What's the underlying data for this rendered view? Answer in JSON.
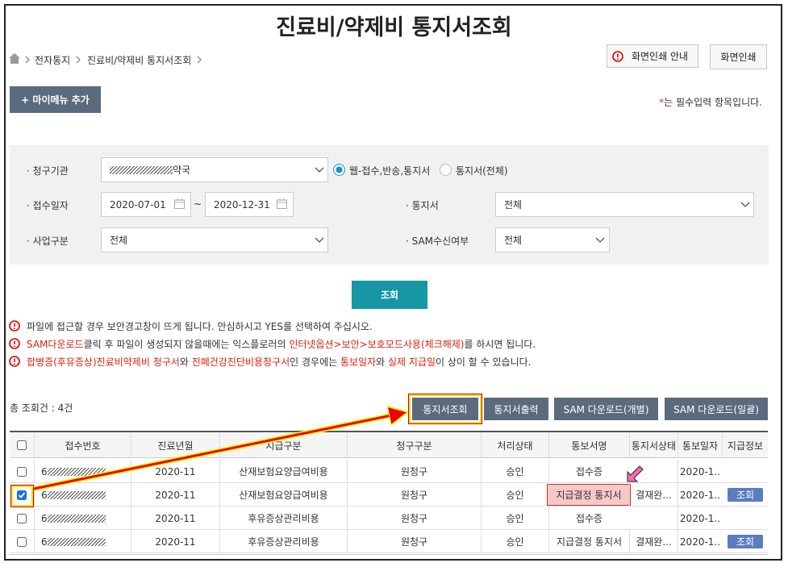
{
  "header": {
    "title": "진료비/약제비 통지서조회",
    "breadcrumb": [
      "전자통지",
      "진료비/약제비 통지서조회"
    ],
    "buttons": [
      "화면인쇄 안내",
      "화면인쇄"
    ]
  },
  "mymenu_button": "+ 마이메뉴 추가",
  "required_note": {
    "mark": "*",
    "text": "는 필수입력 항목입니다."
  },
  "form": {
    "institution": {
      "label": "· 청구기관",
      "value": "약국",
      "radios": [
        {
          "label": "웹-접수,반송,통지서",
          "checked": true
        },
        {
          "label": "통지서(전체)",
          "checked": false
        }
      ]
    },
    "date": {
      "label": "· 접수일자",
      "from": "2020-07-01",
      "sep": "~",
      "to": "2020-12-31"
    },
    "notice_type": {
      "label": "· 통지서",
      "value": "전체"
    },
    "business": {
      "label": "· 사업구분",
      "value": "전체"
    },
    "sam": {
      "label": "· SAM수신여부",
      "value": "전체"
    },
    "search_button": "조회"
  },
  "notices": [
    [
      {
        "text": "파일에 접근할 경우 보안경고창이 뜨게 됩니다. 안심하시고 YES를 선택하여 주십시오.",
        "red": false
      }
    ],
    [
      {
        "text": "SAM다운로드",
        "red": true
      },
      {
        "text": "클릭 후 파일이 생성되지 않을때에는 익스플로러의 ",
        "red": false
      },
      {
        "text": "인터넷옵션>보안>보호모드사용(체크해제)",
        "red": true
      },
      {
        "text": "를 하시면 됩니다.",
        "red": false
      }
    ],
    [
      {
        "text": "합병증(후유증상)진료비약제비 청구서",
        "red": true
      },
      {
        "text": "와 ",
        "red": false
      },
      {
        "text": "진폐건강진단비용청구서",
        "red": true
      },
      {
        "text": "인 경우에는 ",
        "red": false
      },
      {
        "text": "통보일자",
        "red": true
      },
      {
        "text": "와 ",
        "red": false
      },
      {
        "text": "실제 지급일",
        "red": true
      },
      {
        "text": "이 상이 할 수 있습니다.",
        "red": false
      }
    ]
  ],
  "result_count": "총 조회건 : 4건",
  "action_buttons": [
    "통지서조회",
    "통지서출력",
    "SAM 다운로드(개별)",
    "SAM 다운로드(일괄)"
  ],
  "table": {
    "headers": [
      "접수번호",
      "진료년월",
      "지급구분",
      "청구구분",
      "처리상태",
      "통보서명",
      "통지서상태",
      "통보일자",
      "지급정보"
    ],
    "rows": [
      {
        "checked": false,
        "highlight": false,
        "cells": [
          "6",
          "2020-11",
          "산재보험요양급여비용",
          "원청구",
          "승인",
          "접수증",
          null,
          "2020-1..",
          null
        ]
      },
      {
        "checked": true,
        "highlight": true,
        "cells": [
          "6",
          "2020-11",
          "산재보험요양급여비용",
          "원청구",
          "승인",
          "지급결정 통지서",
          "결재완...",
          "2020-1..",
          "조회"
        ]
      },
      {
        "checked": false,
        "highlight": false,
        "cells": [
          "6",
          "2020-11",
          "후유증상관리비용",
          "원청구",
          "승인",
          "접수증",
          null,
          "2020-1..",
          null
        ]
      },
      {
        "checked": false,
        "highlight": false,
        "cells": [
          "6",
          "2020-11",
          "후유증상관리비용",
          "원청구",
          "승인",
          "지급결정 통지서",
          "결재완...",
          "2020-1..",
          "조회"
        ]
      }
    ]
  }
}
